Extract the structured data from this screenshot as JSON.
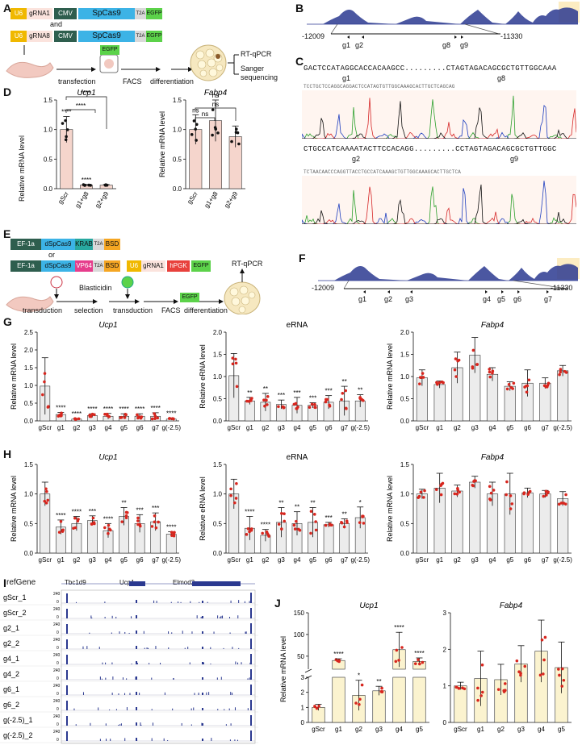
{
  "panels": [
    "A",
    "B",
    "C",
    "D",
    "E",
    "F",
    "G",
    "H",
    "I",
    "J"
  ],
  "panelA": {
    "u6": "U6",
    "grna1": "gRNA1",
    "grna8": "gRNA8",
    "cmv": "CMV",
    "spcas9": "SpCas9",
    "t2a": "T2A",
    "egfp": "EGFP",
    "and": "and",
    "steps": [
      "transfection",
      "FACS",
      "differentiation"
    ],
    "facs_egfp": "EGFP",
    "outputs": [
      "RT-qPCR",
      "Sanger",
      "sequencing"
    ]
  },
  "panelB": {
    "left": "-12009",
    "right": "-11330",
    "guides": [
      "g1",
      "g2",
      "g8",
      "g9"
    ]
  },
  "panelC": {
    "seq1": "GACTCCATAGGCACCACAAGCC.........CTAGTAGACAGCGCTGTTGGCAAA",
    "g1": "g1",
    "g8": "g8",
    "seq1_chrom": "TCCTGCTCCAGGCAGGACTCCATAGTGTTGGCAAAGCACTTGCTCAGCAG",
    "seq2": "CTGCCATCAAAATACTTCCACAGG.........CCTAGTAGACAGCGCTGTTGGC",
    "g2": "g2",
    "g9": "g9",
    "seq2_chrom": "TCTAACAACCCAGGTTACCTGCCATCAAAGCTGTTGGCAAAGCACTTGCTCA"
  },
  "panelD": {
    "ylabel": "Relative mRNA level",
    "charts": [
      {
        "title": "Ucp1",
        "categories": [
          "gScr",
          "g1+g8",
          "g2+g9"
        ],
        "values": [
          1.0,
          0.06,
          0.06
        ],
        "errors": [
          0.22,
          0.01,
          0.01
        ],
        "ylim": [
          0,
          1.5
        ],
        "ticks": [
          "0.0",
          "0.5",
          "1.0",
          "1.5"
        ],
        "sig": [
          "****",
          "****"
        ]
      },
      {
        "title": "Fabp4",
        "categories": [
          "gScr",
          "g1+g8",
          "g2+g9"
        ],
        "values": [
          1.0,
          1.15,
          0.88
        ],
        "errors": [
          0.25,
          0.35,
          0.18
        ],
        "ylim": [
          0,
          1.5
        ],
        "ticks": [
          "0.0",
          "0.5",
          "1.0",
          "1.5"
        ],
        "sig": [
          "ns",
          "ns"
        ]
      }
    ]
  },
  "panelE": {
    "ef1a": "EF-1a",
    "dspcas9": "dSpCas9",
    "krab": "KRAB",
    "t2a": "T2A",
    "bsd": "BSD",
    "or": "or",
    "vp64": "VP64",
    "u6": "U6",
    "grna1": "gRNA1",
    "hpgk": "hPGK",
    "egfp": "EGFP",
    "rtqpcr": "RT-qPCR",
    "steps": [
      "transduction",
      "Blasticidin",
      "selection",
      "transduction",
      "FACS",
      "differentiation"
    ],
    "facs_egfp": "EGFP"
  },
  "panelF": {
    "left": "-12009",
    "right": "-11330",
    "guides": [
      "g1",
      "g2",
      "g3",
      "g4",
      "g5",
      "g6",
      "g7"
    ]
  },
  "panelG": {
    "categories": [
      "gScr",
      "g1",
      "g2",
      "g3",
      "g4",
      "g5",
      "g6",
      "g7",
      "g(-2.5)"
    ],
    "charts": [
      {
        "title": "Ucp1",
        "ylabel": "Relative mRNA level",
        "ylim": [
          0,
          2.5
        ],
        "ticks": [
          "0.0",
          "0.5",
          "1.0",
          "1.5",
          "2.0",
          "2.5"
        ],
        "values": [
          0.98,
          0.18,
          0.05,
          0.15,
          0.13,
          0.13,
          0.13,
          0.13,
          0.05
        ],
        "errors": [
          0.8,
          0.06,
          0.02,
          0.05,
          0.08,
          0.07,
          0.07,
          0.1,
          0.03
        ],
        "sig": [
          "",
          "****",
          "****",
          "****",
          "****",
          "****",
          "****",
          "****",
          "****"
        ]
      },
      {
        "title": "eRNA",
        "ylabel": "Relative eRNA level",
        "ylim": [
          0,
          2.0
        ],
        "ticks": [
          "0.0",
          "0.5",
          "1.0",
          "1.5",
          "2.0"
        ],
        "values": [
          1.02,
          0.45,
          0.42,
          0.37,
          0.35,
          0.35,
          0.42,
          0.45,
          0.45
        ],
        "errors": [
          0.5,
          0.08,
          0.2,
          0.1,
          0.18,
          0.06,
          0.15,
          0.33,
          0.14
        ],
        "sig": [
          "",
          "**",
          "**",
          "***",
          "***",
          "***",
          "***",
          "**",
          "**"
        ]
      },
      {
        "title": "Fabp4",
        "ylabel": "Relative mRNA level",
        "ylim": [
          0,
          2.0
        ],
        "ticks": [
          "0.0",
          "0.5",
          "1.0",
          "1.5",
          "2.0"
        ],
        "values": [
          0.97,
          0.82,
          1.2,
          1.48,
          1.05,
          0.78,
          0.85,
          0.85,
          1.13
        ],
        "errors": [
          0.18,
          0.08,
          0.35,
          0.4,
          0.15,
          0.1,
          0.3,
          0.12,
          0.12
        ],
        "sig": [
          "",
          "",
          "",
          "",
          "",
          "",
          "",
          "",
          ""
        ]
      }
    ]
  },
  "panelH": {
    "categories": [
      "gScr",
      "g1",
      "g2",
      "g3",
      "g4",
      "g5",
      "g6",
      "g7",
      "g(-2.5)"
    ],
    "charts": [
      {
        "title": "Ucp1",
        "ylabel": "Relative mRNA level",
        "ylim": [
          0,
          1.5
        ],
        "ticks": [
          "0.0",
          "0.5",
          "1.0",
          "1.5"
        ],
        "values": [
          1.0,
          0.44,
          0.5,
          0.55,
          0.38,
          0.62,
          0.5,
          0.53,
          0.32
        ],
        "errors": [
          0.2,
          0.12,
          0.12,
          0.08,
          0.12,
          0.15,
          0.15,
          0.15,
          0.04
        ],
        "sig": [
          "",
          "****",
          "****",
          "***",
          "****",
          "**",
          "***",
          "***",
          "****"
        ]
      },
      {
        "title": "eRNA",
        "ylabel": "Relative eRNA level",
        "ylim": [
          0,
          1.5
        ],
        "ticks": [
          "0.0",
          "0.5",
          "1.0",
          "1.5"
        ],
        "values": [
          1.0,
          0.42,
          0.3,
          0.52,
          0.5,
          0.52,
          0.48,
          0.5,
          0.6
        ],
        "errors": [
          0.25,
          0.2,
          0.1,
          0.25,
          0.2,
          0.25,
          0.04,
          0.08,
          0.18
        ],
        "sig": [
          "",
          "****",
          "****",
          "**",
          "**",
          "**",
          "***",
          "**",
          "*"
        ]
      },
      {
        "title": "Fabp4",
        "ylabel": "Relative mRNA level",
        "ylim": [
          0,
          1.5
        ],
        "ticks": [
          "0.0",
          "0.5",
          "1.0",
          "1.5"
        ],
        "values": [
          1.0,
          1.1,
          1.05,
          1.2,
          1.0,
          1.0,
          1.02,
          1.0,
          0.92
        ],
        "errors": [
          0.08,
          0.25,
          0.1,
          0.1,
          0.2,
          0.35,
          0.08,
          0.06,
          0.12
        ],
        "sig": [
          "",
          "",
          "",
          "",
          "",
          "",
          "",
          "",
          ""
        ]
      }
    ]
  },
  "panelI": {
    "refgene": "refGene",
    "genes": [
      "Tbc1d9",
      "Ucp1",
      "Elmod2"
    ],
    "scale_top": "240",
    "scale_bottom": "0",
    "tracks": [
      "gScr_1",
      "gScr_2",
      "g2_1",
      "g2_2",
      "g4_1",
      "g4_2",
      "g6_1",
      "g6_2",
      "g(-2.5)_1",
      "g(-2.5)_2"
    ]
  },
  "panelJ": {
    "ylabel": "Relative mRNA level",
    "categories": [
      "gScr",
      "g1",
      "g2",
      "g3",
      "g4",
      "g5"
    ],
    "charts": [
      {
        "title": "Ucp1",
        "values": [
          1.0,
          40,
          1.8,
          2.1,
          65,
          38
        ],
        "errors": [
          0.2,
          4,
          1.0,
          0.3,
          40,
          8
        ],
        "ticks": [
          "0",
          "1",
          "2",
          "3",
          "50",
          "100",
          "150"
        ],
        "sig": [
          "",
          "****",
          "*",
          "**",
          "****",
          "****"
        ]
      },
      {
        "title": "Fabp4",
        "values": [
          1.0,
          1.2,
          1.17,
          1.6,
          1.95,
          1.5
        ],
        "errors": [
          0.1,
          0.75,
          0.42,
          0.5,
          0.85,
          0.7
        ],
        "ylim": [
          0,
          3
        ],
        "ticks": [
          "0",
          "1",
          "2",
          "3"
        ],
        "sig": [
          "",
          "",
          "",
          "",
          "",
          ""
        ]
      }
    ]
  },
  "colors": {
    "pink_bar": "#f5d5cc",
    "gray_bar": "#ececec",
    "yellow_bar": "#fbf3cf",
    "dot_red": "#d7261e",
    "peak_blue": "#2b3990",
    "cmv_green": "#2e5e4e",
    "cas9_blue": "#3cb3e6",
    "egfp_green": "#5cd24a",
    "t2a_gray": "#d9d9d9",
    "u6_yellow": "#f0b800",
    "krab_teal": "#28a8a0",
    "vp64_pink": "#e63d8c",
    "bsd_orange": "#f5a623",
    "hpgk_red": "#e8413c"
  }
}
